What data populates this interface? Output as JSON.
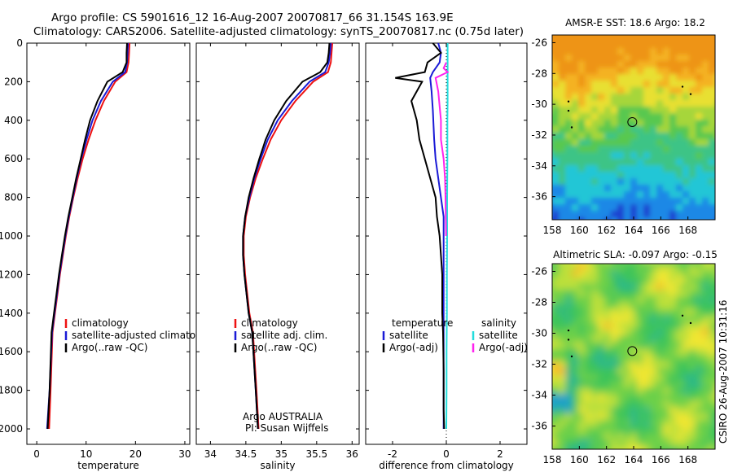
{
  "header": {
    "line1": "Argo profile: CS 5901616_12 16-Aug-2007 20070817_66 31.154S 163.9E",
    "line2": "Climatology: CARS2006. Satellite-adjusted climatology: synTS_20070817.nc (0.75d later)"
  },
  "side_label": "CSIRO 26-Aug-2007 10:31:16",
  "colors": {
    "climatology": "#ee1111",
    "satellite": "#1a1ad6",
    "argo": "#000000",
    "sal_satellite": "#22dddd",
    "sal_argo": "#ff22ee",
    "map_marker": "#000000"
  },
  "chart_data": [
    {
      "type": "line",
      "xlabel": "temperature",
      "ylabel": "",
      "xlim": [
        -2,
        31
      ],
      "ylim": [
        2080,
        0
      ],
      "xticks": [
        0,
        10,
        20,
        30
      ],
      "yticks": [
        0,
        200,
        400,
        600,
        800,
        1000,
        1200,
        1400,
        1600,
        1800,
        2000
      ],
      "y_inverted": true,
      "legend": [
        "climatology",
        "satellite-adjusted climatology",
        "Argo(..raw -QC)"
      ],
      "legend_position": "lower-middle",
      "series": [
        {
          "name": "climatology",
          "color_key": "climatology",
          "x": [
            18.8,
            18.7,
            18.6,
            18.2,
            15.9,
            13.6,
            11.9,
            10.5,
            9.3,
            8.3,
            7.4,
            6.6,
            5.9,
            5.3,
            4.7,
            4.2,
            3.7,
            3.2,
            2.8,
            2.5
          ],
          "y": [
            0,
            50,
            100,
            150,
            200,
            300,
            400,
            500,
            600,
            700,
            800,
            900,
            1000,
            1100,
            1200,
            1300,
            1400,
            1500,
            1800,
            2000
          ]
        },
        {
          "name": "satellite-adjusted climatology",
          "color_key": "satellite",
          "x": [
            18.5,
            18.4,
            18.3,
            17.9,
            15.4,
            13.0,
            11.3,
            10.1,
            9.0,
            8.1,
            7.3,
            6.5,
            5.8,
            5.2,
            4.6,
            4.1,
            3.6,
            3.1,
            2.6,
            2.1
          ],
          "y": [
            0,
            50,
            100,
            150,
            200,
            300,
            400,
            500,
            600,
            700,
            800,
            900,
            1000,
            1100,
            1200,
            1300,
            1400,
            1500,
            1800,
            2000
          ]
        },
        {
          "name": "Argo(..raw -QC)",
          "color_key": "argo",
          "x": [
            18.3,
            18.2,
            18.2,
            17.4,
            14.3,
            12.3,
            10.8,
            9.8,
            8.9,
            8.0,
            7.2,
            6.4,
            5.7,
            5.1,
            4.5,
            4.0,
            3.5,
            3.0,
            2.6,
            2.2
          ],
          "y": [
            0,
            50,
            100,
            150,
            200,
            300,
            400,
            500,
            600,
            700,
            800,
            900,
            1000,
            1100,
            1200,
            1300,
            1400,
            1500,
            1800,
            2000
          ]
        }
      ]
    },
    {
      "type": "line",
      "xlabel": "salinity",
      "ylabel": "",
      "xlim": [
        33.8,
        36.1
      ],
      "ylim": [
        2080,
        0
      ],
      "xticks": [
        34,
        34.5,
        35,
        35.5,
        36
      ],
      "yticks": [],
      "y_inverted": true,
      "legend": [
        "climatology",
        "satellite adj. clim.",
        "Argo(..raw -QC)"
      ],
      "legend_position": "lower-middle",
      "annotation": [
        "Argo AUSTRALIA",
        "PI: Susan Wijffels"
      ],
      "series": [
        {
          "name": "climatology",
          "color_key": "climatology",
          "x": [
            35.72,
            35.71,
            35.7,
            35.66,
            35.45,
            35.2,
            35.0,
            34.85,
            34.74,
            34.64,
            34.56,
            34.5,
            34.47,
            34.47,
            34.49,
            34.52,
            34.55,
            34.6,
            34.65,
            34.68
          ],
          "y": [
            0,
            50,
            100,
            150,
            200,
            300,
            400,
            500,
            600,
            700,
            800,
            900,
            1000,
            1100,
            1200,
            1300,
            1400,
            1500,
            1800,
            2000
          ]
        },
        {
          "name": "satellite adj. clim.",
          "color_key": "satellite",
          "x": [
            35.7,
            35.69,
            35.67,
            35.62,
            35.4,
            35.15,
            34.95,
            34.81,
            34.71,
            34.62,
            34.55,
            34.49,
            34.46,
            34.46,
            34.48,
            34.51,
            34.54,
            34.59,
            34.64,
            34.67
          ],
          "y": [
            0,
            50,
            100,
            150,
            200,
            300,
            400,
            500,
            600,
            700,
            800,
            900,
            1000,
            1100,
            1200,
            1300,
            1400,
            1500,
            1800,
            2000
          ]
        },
        {
          "name": "Argo(..raw -QC)",
          "color_key": "argo",
          "x": [
            35.68,
            35.67,
            35.65,
            35.55,
            35.3,
            35.07,
            34.9,
            34.78,
            34.69,
            34.61,
            34.54,
            34.49,
            34.46,
            34.46,
            34.48,
            34.51,
            34.54,
            34.59,
            34.64,
            34.67
          ],
          "y": [
            0,
            50,
            100,
            150,
            200,
            300,
            400,
            500,
            600,
            700,
            800,
            900,
            1000,
            1100,
            1200,
            1300,
            1400,
            1500,
            1800,
            2000
          ]
        }
      ]
    },
    {
      "type": "line",
      "xlabel": "difference from climatology",
      "ylabel": "",
      "xlim": [
        -3,
        3
      ],
      "ylim": [
        2080,
        0
      ],
      "xticks": [
        -2,
        0,
        2
      ],
      "yticks": [],
      "y_inverted": true,
      "zero_line": "dotted",
      "legend_groups": [
        {
          "title": "temperature",
          "entries": [
            "satellite",
            "Argo(-adj)"
          ]
        },
        {
          "title": "salinity",
          "entries": [
            "satellite",
            "Argo(-adj)"
          ]
        }
      ],
      "legend_position": "lower-middle",
      "series": [
        {
          "name": "satellite",
          "group": "temperature",
          "color_key": "satellite",
          "x": [
            -0.3,
            -0.2,
            -0.25,
            -0.5,
            -0.6,
            -0.55,
            -0.5,
            -0.45,
            -0.4,
            -0.3,
            -0.2,
            -0.1,
            -0.1,
            -0.1,
            -0.1,
            -0.1,
            -0.1,
            -0.1,
            -0.1,
            -0.1,
            -0.1
          ],
          "y": [
            0,
            50,
            100,
            150,
            180,
            250,
            350,
            500,
            600,
            700,
            800,
            900,
            1000,
            1100,
            1200,
            1300,
            1400,
            1500,
            1700,
            1900,
            2000
          ]
        },
        {
          "name": "Argo(-adj)",
          "group": "temperature",
          "color_key": "argo",
          "x": [
            -0.5,
            -0.2,
            -0.7,
            -0.8,
            -1.9,
            -0.9,
            -1.3,
            -1.1,
            -1.0,
            -0.8,
            -0.6,
            -0.4,
            -0.35,
            -0.25,
            -0.2,
            -0.15,
            -0.15,
            -0.12,
            -0.1,
            -0.1,
            -0.08
          ],
          "y": [
            0,
            50,
            100,
            150,
            180,
            200,
            300,
            400,
            500,
            600,
            700,
            800,
            900,
            1000,
            1100,
            1200,
            1400,
            1500,
            1700,
            1900,
            2000
          ]
        },
        {
          "name": "satellite",
          "group": "salinity",
          "color_key": "sal_satellite",
          "x": [
            0.05,
            0.05,
            0.05,
            0.05,
            0.04,
            0.04,
            0.03,
            0.03,
            0.02,
            0.02,
            0.01,
            0.01,
            0.0
          ],
          "y": [
            0,
            100,
            200,
            300,
            400,
            600,
            800,
            1000,
            1200,
            1400,
            1600,
            1800,
            2000
          ]
        },
        {
          "name": "Argo(-adj)",
          "group": "salinity",
          "color_key": "sal_argo",
          "x": [
            0.0,
            -0.1,
            0.05,
            -0.4,
            -0.3,
            -0.2,
            -0.2,
            -0.1,
            -0.05,
            -0.03,
            -0.02,
            -0.01
          ],
          "y": [
            100,
            130,
            150,
            180,
            250,
            400,
            500,
            600,
            700,
            800,
            900,
            1000
          ]
        }
      ]
    },
    {
      "type": "heatmap",
      "title": "AMSR-E SST: 18.6 Argo: 18.2",
      "xlim": [
        158,
        170
      ],
      "ylim": [
        -37.5,
        -25.5
      ],
      "xticks": [
        158,
        160,
        162,
        164,
        166,
        168
      ],
      "yticks": [
        -26,
        -28,
        -30,
        -32,
        -34,
        -36
      ],
      "marker": {
        "lon": 163.9,
        "lat": -31.154,
        "shape": "open circle"
      }
    },
    {
      "type": "heatmap",
      "title": "Altimetric SLA: -0.097 Argo: -0.15",
      "xlim": [
        158,
        170
      ],
      "ylim": [
        -37.5,
        -25.5
      ],
      "xticks": [
        158,
        160,
        162,
        164,
        166,
        168
      ],
      "yticks": [
        -26,
        -28,
        -30,
        -32,
        -34,
        -36
      ],
      "marker": {
        "lon": 163.9,
        "lat": -31.154,
        "shape": "open circle"
      }
    }
  ]
}
